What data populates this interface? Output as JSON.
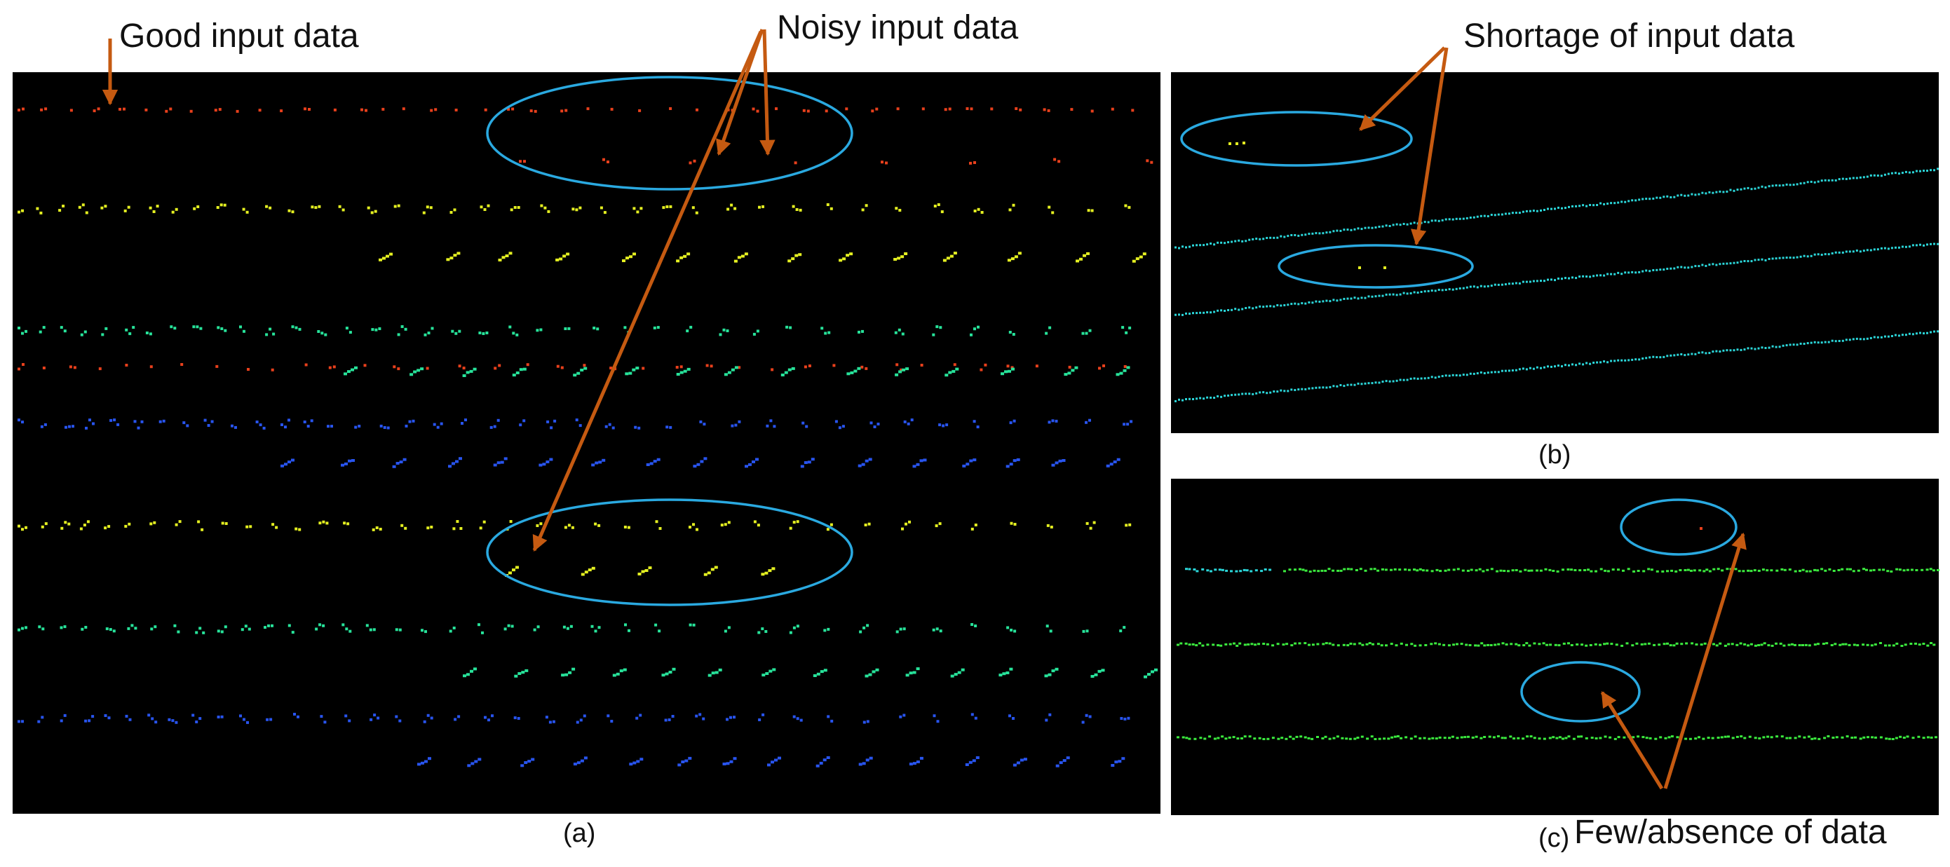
{
  "annotations": {
    "good": "Good input data",
    "noisy": "Noisy input data",
    "shortage": "Shortage of input data",
    "few": "Few/absence of data"
  },
  "captions": {
    "a": "(a)",
    "b": "(b)",
    "c": "(c)"
  },
  "colors": {
    "background": "#000000",
    "arrow": "#C55A11",
    "ellipse": "#2AA9E0",
    "red": "#E8401C",
    "yellow": "#E4F021",
    "green": "#27E39A",
    "blue": "#2854EE",
    "cyan": "#2BD6D9",
    "lime": "#3BEA3E"
  },
  "panels": [
    {
      "id": "a",
      "content": "LiDAR scan lines: good input data (left) and noisy input data (right)"
    },
    {
      "id": "b",
      "content": "Sparse scan lines with shortage of input data"
    },
    {
      "id": "c",
      "content": "Scan lines with few or absent data"
    }
  ]
}
